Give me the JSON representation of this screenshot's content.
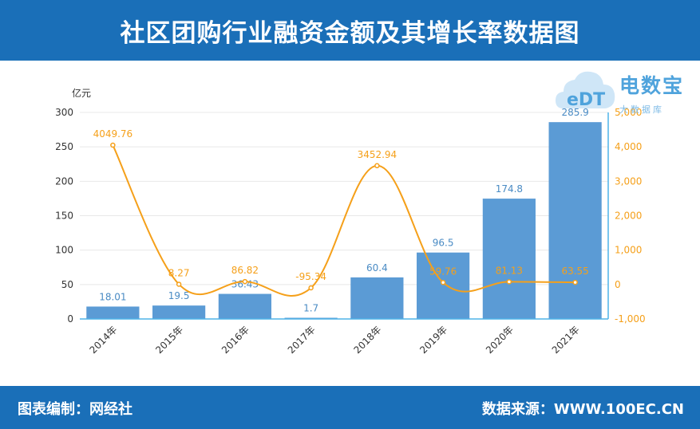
{
  "header": {
    "title": "社区团购行业融资金额及其增长率数据图"
  },
  "footer": {
    "left": "图表编制：网经社",
    "right": "数据来源：WWW.100EC.CN"
  },
  "logo": {
    "brand": "电数宝",
    "sub": "大数据库",
    "mark": "eDT"
  },
  "colors": {
    "bar": "#5b9bd5",
    "line": "#f5a01a",
    "header": "#1a6fb8"
  },
  "chart_data": {
    "type": "bar+line",
    "categories": [
      "2014年",
      "2015年",
      "2016年",
      "2017年",
      "2018年",
      "2019年",
      "2020年",
      "2021年"
    ],
    "series": [
      {
        "values": [
          18.01,
          19.5,
          36.43,
          1.7,
          60.4,
          96.5,
          174.8,
          285.9
        ],
        "axis": "left",
        "kind": "bar"
      },
      {
        "values": [
          4049.76,
          8.27,
          86.82,
          -95.34,
          3452.94,
          59.76,
          81.13,
          63.55
        ],
        "axis": "right",
        "kind": "line"
      }
    ],
    "left_axis": {
      "unit": "亿元",
      "ticks": [
        0,
        50,
        100,
        150,
        200,
        250,
        300
      ],
      "ylim": [
        0,
        300
      ]
    },
    "right_axis": {
      "unit": "%",
      "ticks": [
        "-1,000",
        "0",
        "1,000",
        "2,000",
        "3,000",
        "4,000",
        "5,000"
      ],
      "tick_values": [
        -1000,
        0,
        1000,
        2000,
        3000,
        4000,
        5000
      ],
      "ylim": [
        -1000,
        5000
      ]
    },
    "grid": true
  }
}
